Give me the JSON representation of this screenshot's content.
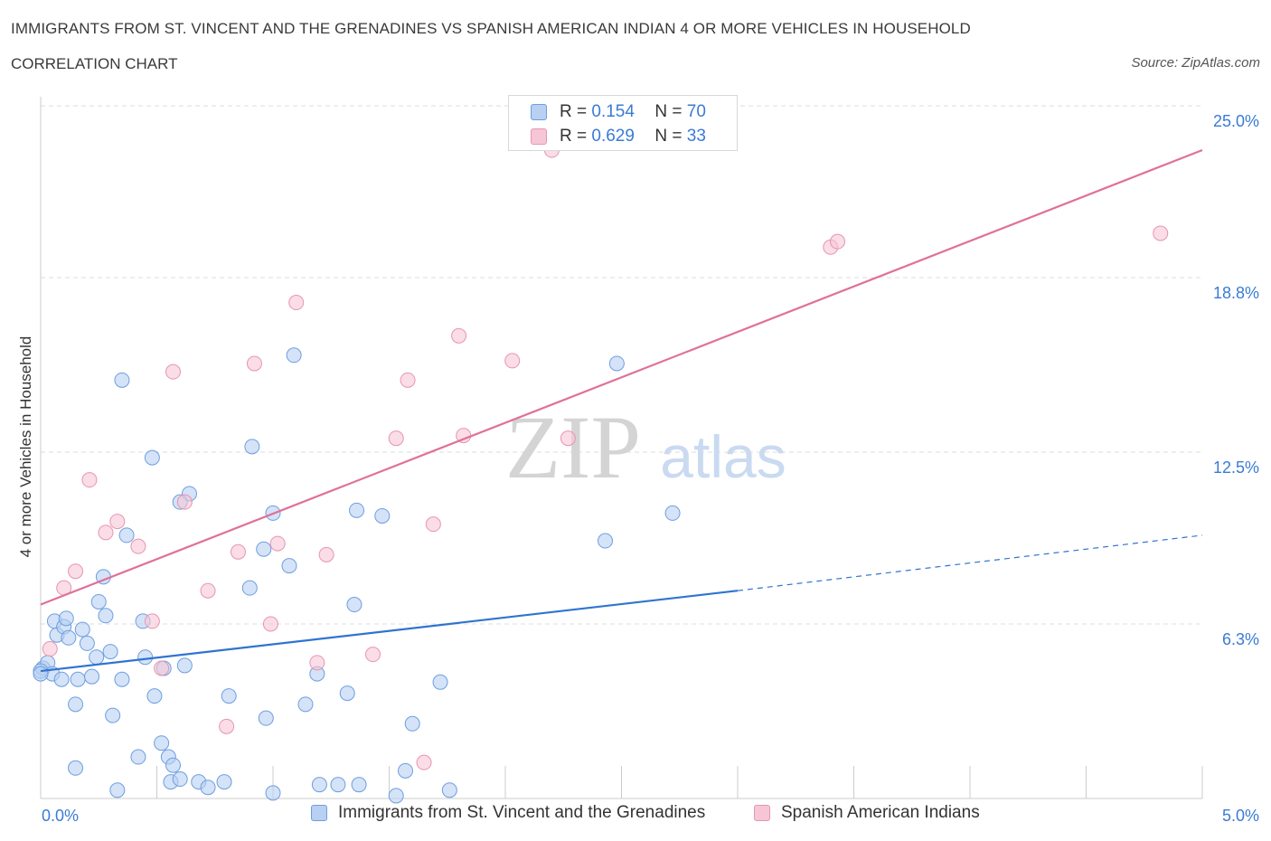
{
  "header": {
    "title": "IMMIGRANTS FROM ST. VINCENT AND THE GRENADINES VS SPANISH AMERICAN INDIAN 4 OR MORE VEHICLES IN HOUSEHOLD",
    "subtitle": "CORRELATION CHART",
    "source": "Source: ZipAtlas.com"
  },
  "legend_top": {
    "rows": [
      {
        "r_label": "R =",
        "r_value": "0.154",
        "n_label": "N =",
        "n_value": "70"
      },
      {
        "r_label": "R =",
        "r_value": "0.629",
        "n_label": "N =",
        "n_value": "33"
      }
    ]
  },
  "watermark": {
    "zip": "ZIP",
    "atlas": "atlas"
  },
  "colors": {
    "blue_fill": "#b8d0f2",
    "blue_stroke": "#6d9ee0",
    "blue_line": "#2f74d0",
    "pink_fill": "#f7c6d6",
    "pink_stroke": "#e795b0",
    "pink_line": "#e0709a",
    "grid": "#dddddd",
    "tick_label": "#3a7bd5"
  },
  "chart_data": {
    "type": "scatter",
    "xlabel": "",
    "ylabel": "4 or more Vehicles in Household",
    "xlim": [
      0,
      5
    ],
    "ylim": [
      0,
      25
    ],
    "x_tick_labels": [
      "0.0%",
      "5.0%"
    ],
    "y_ticks": [
      6.3,
      12.5,
      18.8,
      25.0
    ],
    "y_tick_labels": [
      "6.3%",
      "12.5%",
      "18.8%",
      "25.0%"
    ],
    "grid": true,
    "legend_position": "bottom",
    "series": [
      {
        "name": "Immigrants from St. Vincent and the Grenadines",
        "color": "blue",
        "trend": {
          "x": [
            0,
            3.0
          ],
          "y": [
            4.6,
            7.5
          ],
          "dashed_to": [
            5.0,
            9.5
          ]
        },
        "points": [
          [
            0.01,
            4.7
          ],
          [
            0.03,
            4.9
          ],
          [
            0.05,
            4.5
          ],
          [
            0.06,
            6.4
          ],
          [
            0.07,
            5.9
          ],
          [
            0.09,
            4.3
          ],
          [
            0.1,
            6.2
          ],
          [
            0.11,
            6.5
          ],
          [
            0.12,
            5.8
          ],
          [
            0.15,
            3.4
          ],
          [
            0.16,
            4.3
          ],
          [
            0.18,
            6.1
          ],
          [
            0.2,
            5.6
          ],
          [
            0.22,
            4.4
          ],
          [
            0.24,
            5.1
          ],
          [
            0.25,
            7.1
          ],
          [
            0.27,
            8.0
          ],
          [
            0.28,
            6.6
          ],
          [
            0.3,
            5.3
          ],
          [
            0.31,
            3.0
          ],
          [
            0.33,
            0.3
          ],
          [
            0.35,
            15.1
          ],
          [
            0.35,
            4.3
          ],
          [
            0.37,
            9.5
          ],
          [
            0.42,
            1.5
          ],
          [
            0.44,
            6.4
          ],
          [
            0.45,
            5.1
          ],
          [
            0.48,
            12.3
          ],
          [
            0.49,
            3.7
          ],
          [
            0.52,
            2.0
          ],
          [
            0.53,
            4.7
          ],
          [
            0.55,
            1.5
          ],
          [
            0.56,
            0.6
          ],
          [
            0.57,
            1.2
          ],
          [
            0.6,
            0.7
          ],
          [
            0.62,
            4.8
          ],
          [
            0.64,
            11.0
          ],
          [
            0.68,
            0.6
          ],
          [
            0.72,
            0.4
          ],
          [
            0.79,
            0.6
          ],
          [
            0.81,
            3.7
          ],
          [
            0.9,
            7.6
          ],
          [
            0.91,
            12.7
          ],
          [
            0.96,
            9.0
          ],
          [
            0.97,
            2.9
          ],
          [
            1.0,
            10.3
          ],
          [
            1.07,
            8.4
          ],
          [
            1.09,
            16.0
          ],
          [
            1.14,
            3.4
          ],
          [
            1.19,
            4.5
          ],
          [
            1.2,
            0.5
          ],
          [
            1.28,
            0.5
          ],
          [
            1.32,
            3.8
          ],
          [
            1.35,
            7.0
          ],
          [
            1.36,
            10.4
          ],
          [
            1.37,
            0.5
          ],
          [
            1.47,
            10.2
          ],
          [
            1.53,
            0.1
          ],
          [
            1.57,
            1.0
          ],
          [
            1.6,
            2.7
          ],
          [
            1.72,
            4.2
          ],
          [
            1.76,
            0.3
          ],
          [
            2.43,
            9.3
          ],
          [
            2.48,
            15.7
          ],
          [
            2.72,
            10.3
          ],
          [
            0.15,
            1.1
          ],
          [
            0.0,
            4.6
          ],
          [
            0.6,
            10.7
          ],
          [
            0.0,
            4.5
          ],
          [
            1.0,
            0.2
          ]
        ]
      },
      {
        "name": "Spanish American Indians",
        "color": "pink",
        "trend": {
          "x": [
            0,
            5.0
          ],
          "y": [
            7.0,
            23.4
          ]
        },
        "points": [
          [
            0.04,
            5.4
          ],
          [
            0.1,
            7.6
          ],
          [
            0.15,
            8.2
          ],
          [
            0.21,
            11.5
          ],
          [
            0.28,
            9.6
          ],
          [
            0.33,
            10.0
          ],
          [
            0.42,
            9.1
          ],
          [
            0.48,
            6.4
          ],
          [
            0.52,
            4.7
          ],
          [
            0.57,
            15.4
          ],
          [
            0.62,
            10.7
          ],
          [
            0.72,
            7.5
          ],
          [
            0.8,
            2.6
          ],
          [
            0.85,
            8.9
          ],
          [
            0.92,
            15.7
          ],
          [
            0.99,
            6.3
          ],
          [
            1.02,
            9.2
          ],
          [
            1.1,
            17.9
          ],
          [
            1.19,
            4.9
          ],
          [
            1.23,
            8.8
          ],
          [
            1.43,
            5.2
          ],
          [
            1.53,
            13.0
          ],
          [
            1.58,
            15.1
          ],
          [
            1.65,
            1.3
          ],
          [
            1.69,
            9.9
          ],
          [
            1.8,
            16.7
          ],
          [
            1.82,
            13.1
          ],
          [
            2.03,
            15.8
          ],
          [
            2.2,
            23.4
          ],
          [
            2.27,
            13.0
          ],
          [
            3.4,
            19.9
          ],
          [
            3.43,
            20.1
          ],
          [
            4.82,
            20.4
          ]
        ]
      }
    ]
  },
  "legend_bottom": {
    "items": [
      {
        "label": "Immigrants from St. Vincent and the Grenadines"
      },
      {
        "label": "Spanish American Indians"
      }
    ]
  }
}
